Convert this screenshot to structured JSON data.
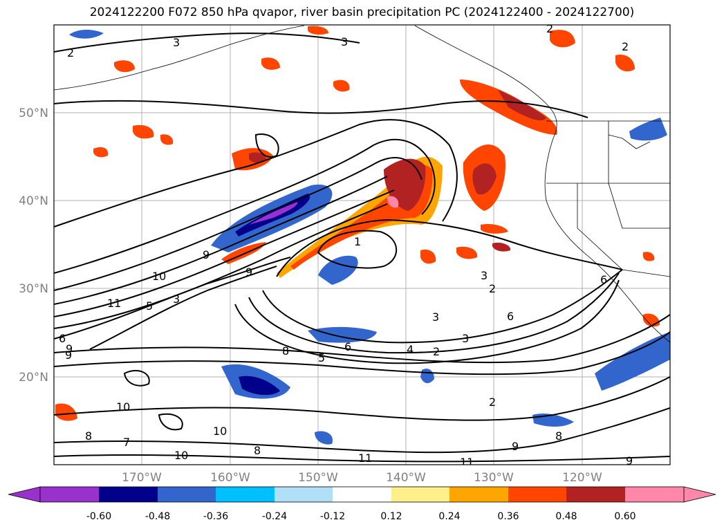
{
  "title": "2024122200 F072 850 hPa qvapor, river basin precipitation PC (2024122400 - 2024122700)",
  "map": {
    "lon_range": [
      -180,
      -110
    ],
    "lat_range": [
      10,
      60
    ],
    "lat_labels": [
      "50°N",
      "40°N",
      "30°N",
      "20°N"
    ],
    "lat_values": [
      50,
      40,
      30,
      20
    ],
    "lon_labels": [
      "170°W",
      "160°W",
      "150°W",
      "140°W",
      "130°W",
      "120°W"
    ],
    "lon_values": [
      -170,
      -160,
      -150,
      -140,
      -130,
      -120
    ],
    "contour_labels": [
      "2",
      "3",
      "2",
      "3",
      "9",
      "10",
      "11",
      "5",
      "3",
      "1",
      "9",
      "9",
      "8",
      "5",
      "6",
      "4",
      "2",
      "3",
      "8",
      "3",
      "2",
      "3",
      "6",
      "6",
      "2",
      "9",
      "10",
      "10",
      "8",
      "8",
      "9",
      "7",
      "10",
      "11",
      "11",
      "9",
      "6",
      "2"
    ]
  },
  "colorbar": {
    "ticks": [
      "-0.60",
      "-0.48",
      "-0.36",
      "-0.24",
      "-0.12",
      "0.12",
      "0.24",
      "0.36",
      "0.48",
      "0.60"
    ],
    "colors": [
      "#9932cc",
      "#00008b",
      "#3366cc",
      "#00bfff",
      "#b0e0f8",
      "#ffffff",
      "#fff08c",
      "#ffa500",
      "#ff4500",
      "#b22222",
      "#ff88aa",
      "#ff88aa"
    ],
    "under_color": "#9932cc",
    "over_color": "#ff88aa"
  }
}
